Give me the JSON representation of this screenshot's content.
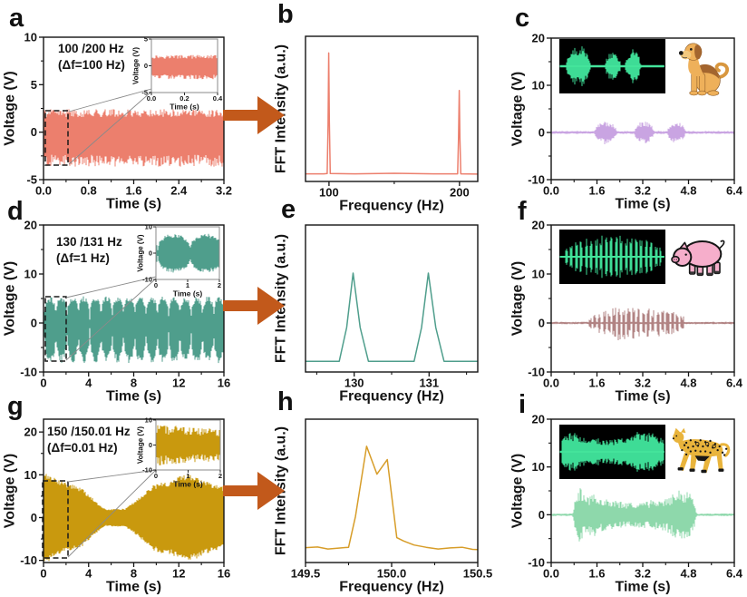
{
  "figure": {
    "background": "#ffffff",
    "arrow_color": "#c2591b",
    "axis_color": "#141414",
    "connector_color": "#8a8a8a",
    "dash_color": "#1a1a1a",
    "scope_bg": "#000000",
    "scope_trace": "#3edc96"
  },
  "panels": [
    {
      "label": "a"
    },
    {
      "label": "b"
    },
    {
      "label": "c"
    },
    {
      "label": "d"
    },
    {
      "label": "e"
    },
    {
      "label": "f"
    },
    {
      "label": "g"
    },
    {
      "label": "h"
    },
    {
      "label": "i"
    }
  ],
  "chart_data": [
    {
      "id": "a",
      "type": "waveform",
      "xlabel": "Time (s)",
      "ylabel": "Voltage (V)",
      "xlim": [
        0,
        3.2
      ],
      "ylim": [
        -5,
        10
      ],
      "xticks": [
        0,
        0.8,
        1.6,
        2.4,
        3.2
      ],
      "xtick_labels": [
        "0.0",
        "0.8",
        "1.6",
        "2.4",
        "3.2"
      ],
      "xminor": [
        0.4,
        1.2,
        2.0,
        2.8
      ],
      "yticks": [
        -5,
        0,
        5,
        10
      ],
      "ytick_labels": [
        "-5",
        "0",
        "5",
        "10"
      ],
      "yminor": [
        -2.5,
        2.5,
        7.5
      ],
      "color": "#ec7f6d",
      "annotation": [
        "100 /200 Hz",
        "(Δf=100 Hz)"
      ],
      "signal": {
        "kind": "dense",
        "span": [
          0,
          3.2
        ],
        "amp_top": 2.2,
        "amp_bot": -3.3
      },
      "inset": {
        "xlabel": "Time (s)",
        "ylabel": "Voltage (V)",
        "xlim": [
          0,
          0.4
        ],
        "ylim": [
          -5,
          5
        ],
        "xticks": [
          0,
          0.2,
          0.4
        ],
        "xtick_labels": [
          "0.0",
          "0.2",
          "0.4"
        ],
        "yticks": [
          -5,
          0,
          5
        ],
        "ytick_labels": [
          "-5",
          "0",
          "5"
        ],
        "signal": {
          "kind": "dense",
          "span": [
            0,
            0.4
          ],
          "amp_top": 1.9,
          "amp_bot": -2.4
        }
      }
    },
    {
      "id": "b",
      "type": "fft",
      "xlabel": "Frequency (Hz)",
      "ylabel": "FFT Intensity (a.u.)",
      "xlim": [
        82,
        214
      ],
      "xticks": [
        100,
        200
      ],
      "xtick_labels": [
        "100",
        "200"
      ],
      "xminor": [
        150
      ],
      "color": "#ec7f6d",
      "peaks": [
        {
          "freq": 100,
          "rel_intensity": 0.93
        },
        {
          "freq": 200,
          "rel_intensity": 0.65
        }
      ],
      "points": [
        [
          82,
          0.03
        ],
        [
          96,
          0.03
        ],
        [
          98.6,
          0.032
        ],
        [
          99.3,
          0.4
        ],
        [
          99.8,
          0.93
        ],
        [
          100.3,
          0.42
        ],
        [
          101,
          0.032
        ],
        [
          120,
          0.03
        ],
        [
          150,
          0.034
        ],
        [
          180,
          0.03
        ],
        [
          198.6,
          0.03
        ],
        [
          199.3,
          0.3
        ],
        [
          199.8,
          0.65
        ],
        [
          200.3,
          0.3
        ],
        [
          201,
          0.03
        ],
        [
          214,
          0.028
        ]
      ]
    },
    {
      "id": "c",
      "type": "waveform",
      "xlabel": "Time (s)",
      "ylabel": "Voltage (V)",
      "xlim": [
        0,
        6.4
      ],
      "ylim": [
        -10,
        20
      ],
      "xticks": [
        0,
        1.6,
        3.2,
        4.8,
        6.4
      ],
      "xtick_labels": [
        "0.0",
        "1.6",
        "3.2",
        "4.8",
        "6.4"
      ],
      "xminor": [
        0.8,
        2.4,
        4.0,
        5.6
      ],
      "yticks": [
        -10,
        0,
        10,
        20
      ],
      "ytick_labels": [
        "-10",
        "0",
        "10",
        "20"
      ],
      "yminor": [
        -5,
        5,
        15
      ],
      "color": "#c9a4e2",
      "signal": {
        "kind": "bursts",
        "span": [
          0,
          6.4
        ],
        "base": 0.28,
        "bursts": [
          [
            1.5,
            2.3,
            2.3
          ],
          [
            2.9,
            3.6,
            2.2
          ],
          [
            4.05,
            4.7,
            2.1
          ]
        ]
      },
      "scope": {
        "kind": "bursts",
        "base": 0.05,
        "bursts": [
          [
            0.06,
            0.3,
            0.85
          ],
          [
            0.43,
            0.58,
            0.62
          ],
          [
            0.62,
            0.77,
            0.7
          ]
        ]
      },
      "animal": "dog"
    },
    {
      "id": "d",
      "type": "waveform",
      "xlabel": "Time (s)",
      "ylabel": "Voltage (V)",
      "xlim": [
        0,
        16
      ],
      "ylim": [
        -10,
        20
      ],
      "xticks": [
        0,
        4,
        8,
        12,
        16
      ],
      "xtick_labels": [
        "0",
        "4",
        "8",
        "12",
        "16"
      ],
      "xminor": [
        2,
        6,
        10,
        14
      ],
      "yticks": [
        -10,
        0,
        10,
        20
      ],
      "ytick_labels": [
        "-10",
        "0",
        "10",
        "20"
      ],
      "yminor": [
        -5,
        5,
        15
      ],
      "color": "#4f9e8c",
      "annotation": [
        "130 /131 Hz",
        "(Δf=1 Hz)"
      ],
      "signal": {
        "kind": "beat",
        "span": [
          0,
          16
        ],
        "period": 1.0,
        "phase": 0.1,
        "amp_top": 5.0,
        "amp_bot": -7.5
      },
      "inset": {
        "xlabel": "Time (s)",
        "ylabel": "Voltage (V)",
        "xlim": [
          0,
          2
        ],
        "ylim": [
          -10,
          10
        ],
        "xticks": [
          0,
          1,
          2
        ],
        "xtick_labels": [
          "0",
          "1",
          "2"
        ],
        "yticks": [
          -10,
          0,
          10
        ],
        "ytick_labels": [
          "-10",
          "0",
          "10"
        ],
        "signal": {
          "kind": "beat",
          "span": [
            0,
            2
          ],
          "period": 1.05,
          "phase": 0.03,
          "amp_top": 7,
          "amp_bot": -7
        }
      }
    },
    {
      "id": "e",
      "type": "fft",
      "xlabel": "Frequency (Hz)",
      "ylabel": "FFT Intensity (a.u.)",
      "xlim": [
        129.35,
        131.65
      ],
      "xticks": [
        130,
        131
      ],
      "xtick_labels": [
        "130",
        "131"
      ],
      "xminor": [
        129.5,
        130.5,
        131.5
      ],
      "color": "#4f9e8c",
      "peaks": [
        {
          "freq": 130,
          "rel_intensity": 0.7
        },
        {
          "freq": 131,
          "rel_intensity": 0.7
        }
      ],
      "points": [
        [
          129.35,
          0.052
        ],
        [
          129.8,
          0.052
        ],
        [
          129.9,
          0.3
        ],
        [
          129.985,
          0.7
        ],
        [
          130.08,
          0.3
        ],
        [
          130.19,
          0.052
        ],
        [
          130.8,
          0.052
        ],
        [
          130.9,
          0.3
        ],
        [
          130.99,
          0.7
        ],
        [
          131.09,
          0.3
        ],
        [
          131.2,
          0.052
        ],
        [
          131.65,
          0.052
        ]
      ]
    },
    {
      "id": "f",
      "type": "waveform",
      "xlabel": "Time (s)",
      "ylabel": "Voltage (V)",
      "xlim": [
        0,
        6.4
      ],
      "ylim": [
        -10,
        20
      ],
      "xticks": [
        0,
        1.6,
        3.2,
        4.8,
        6.4
      ],
      "xtick_labels": [
        "0.0",
        "1.6",
        "3.2",
        "4.8",
        "6.4"
      ],
      "xminor": [
        0.8,
        2.4,
        4.0,
        5.6
      ],
      "yticks": [
        -10,
        0,
        10,
        20
      ],
      "ytick_labels": [
        "-10",
        "0",
        "10",
        "20"
      ],
      "yminor": [
        -5,
        5,
        15
      ],
      "color": "#b18383",
      "signal": {
        "kind": "pulses",
        "span": [
          0,
          6.4
        ],
        "base": 0.25,
        "width": 0.1,
        "pulses": [
          [
            1.35,
            1.2
          ],
          [
            1.52,
            1.7
          ],
          [
            1.69,
            2.1
          ],
          [
            1.86,
            2.4
          ],
          [
            2.03,
            2.7
          ],
          [
            2.2,
            3.1
          ],
          [
            2.37,
            3.5
          ],
          [
            2.54,
            3.2
          ],
          [
            2.71,
            2.9
          ],
          [
            2.88,
            3.1
          ],
          [
            3.05,
            2.8
          ],
          [
            3.22,
            2.6
          ],
          [
            3.39,
            2.9
          ],
          [
            3.56,
            2.5
          ],
          [
            3.73,
            2.7
          ],
          [
            3.9,
            2.4
          ],
          [
            4.07,
            2.6
          ],
          [
            4.24,
            2.2
          ],
          [
            4.41,
            1.8
          ],
          [
            4.58,
            1.4
          ]
        ]
      },
      "scope": {
        "kind": "pulses",
        "base": 0.04,
        "start": 0.055,
        "end": 0.96,
        "period": 0.047
      },
      "animal": "pig"
    },
    {
      "id": "g",
      "type": "waveform",
      "xlabel": "Time (s)",
      "ylabel": "Voltage (V)",
      "xlim": [
        0,
        16
      ],
      "ylim": [
        -10.5,
        23
      ],
      "xticks": [
        0,
        4,
        8,
        12,
        16
      ],
      "xtick_labels": [
        "0",
        "4",
        "8",
        "12",
        "16"
      ],
      "xminor": [
        2,
        6,
        10,
        14
      ],
      "yticks": [
        -10,
        0,
        10,
        20
      ],
      "ytick_labels": [
        "-10",
        "0",
        "10",
        "20"
      ],
      "yminor": [
        -5,
        5,
        15
      ],
      "color": "#c9990e",
      "annotation": [
        "150 /150.01 Hz",
        "(Δf=0.01 Hz)"
      ],
      "signal": {
        "kind": "pinch",
        "span": [
          0,
          16
        ],
        "node": 6.35,
        "period": 12.7,
        "amp": 9.2,
        "min": 1.9
      },
      "inset": {
        "xlabel": "Time (s)",
        "ylabel": "Voltage (V)",
        "xlim": [
          0,
          2
        ],
        "ylim": [
          -10,
          10
        ],
        "xticks": [
          0,
          1,
          2
        ],
        "xtick_labels": [
          "0",
          "1",
          "2"
        ],
        "yticks": [
          -10,
          0,
          10
        ],
        "ytick_labels": [
          "-10",
          "0",
          "10"
        ],
        "signal": {
          "kind": "dense_decay",
          "span": [
            0,
            2
          ],
          "amp0": 8.2,
          "amp1": 6.3
        }
      }
    },
    {
      "id": "h",
      "type": "fft",
      "xlabel": "Frequency (Hz)",
      "ylabel": "FFT Intensity (a.u.)",
      "xlim": [
        149.5,
        150.5
      ],
      "xticks": [
        149.5,
        150.0,
        150.5
      ],
      "xtick_labels": [
        "149.5",
        "150.0",
        "150.5"
      ],
      "xminor": [
        149.75,
        150.25
      ],
      "color": "#d79d29",
      "peaks": [
        {
          "freq": 149.86,
          "rel_intensity": 0.85
        },
        {
          "freq": 149.98,
          "rel_intensity": 0.75
        }
      ],
      "points": [
        [
          149.5,
          0.085
        ],
        [
          149.57,
          0.09
        ],
        [
          149.63,
          0.075
        ],
        [
          149.7,
          0.082
        ],
        [
          149.75,
          0.088
        ],
        [
          149.79,
          0.32
        ],
        [
          149.855,
          0.85
        ],
        [
          149.915,
          0.64
        ],
        [
          149.975,
          0.75
        ],
        [
          150.03,
          0.16
        ],
        [
          150.07,
          0.135
        ],
        [
          150.13,
          0.105
        ],
        [
          150.2,
          0.088
        ],
        [
          150.27,
          0.075
        ],
        [
          150.34,
          0.083
        ],
        [
          150.41,
          0.088
        ],
        [
          150.47,
          0.072
        ],
        [
          150.5,
          0.07
        ]
      ]
    },
    {
      "id": "i",
      "type": "waveform",
      "xlabel": "Time (s)",
      "ylabel": "Voltage (V)",
      "xlim": [
        0,
        6.4
      ],
      "ylim": [
        -10,
        20
      ],
      "xticks": [
        0,
        1.6,
        3.2,
        4.8,
        6.4
      ],
      "xtick_labels": [
        "0.0",
        "1.6",
        "3.2",
        "4.8",
        "6.4"
      ],
      "xminor": [
        0.8,
        2.4,
        4.0,
        5.6
      ],
      "yticks": [
        -10,
        0,
        10,
        20
      ],
      "ytick_labels": [
        "-10",
        "0",
        "10",
        "20"
      ],
      "yminor": [
        -5,
        5,
        15
      ],
      "color": "#8ed8ab",
      "signal": {
        "kind": "noiseband",
        "span": [
          0,
          6.4
        ],
        "base": 0.25,
        "envelope": [
          [
            0.75,
            0.4
          ],
          [
            0.88,
            4.6
          ],
          [
            1.0,
            5.6
          ],
          [
            1.25,
            3.9
          ],
          [
            1.55,
            4.3
          ],
          [
            1.85,
            3.4
          ],
          [
            2.15,
            2.9
          ],
          [
            2.5,
            2.6
          ],
          [
            2.85,
            2.4
          ],
          [
            3.15,
            2.6
          ],
          [
            3.45,
            2.9
          ],
          [
            3.75,
            3.1
          ],
          [
            4.05,
            3.5
          ],
          [
            4.35,
            4.7
          ],
          [
            4.6,
            5.1
          ],
          [
            4.85,
            4.4
          ],
          [
            5.0,
            2.8
          ],
          [
            5.08,
            0.4
          ]
        ]
      },
      "scope": {
        "kind": "noise",
        "base": 0.05,
        "start": 0.02,
        "end": 0.985,
        "profile": [
          [
            0.02,
            0.6
          ],
          [
            0.1,
            0.85
          ],
          [
            0.2,
            0.65
          ],
          [
            0.35,
            0.55
          ],
          [
            0.5,
            0.5
          ],
          [
            0.62,
            0.6
          ],
          [
            0.75,
            0.85
          ],
          [
            0.88,
            0.75
          ],
          [
            0.985,
            0.55
          ]
        ]
      },
      "animal": "leopard"
    }
  ]
}
